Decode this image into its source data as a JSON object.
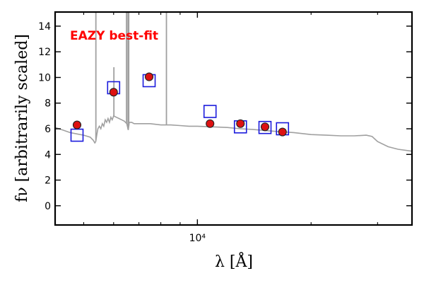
{
  "chart_data": {
    "type": "scatter",
    "annotation": "EAZY best-fit",
    "annotation_color": "#ff0000",
    "xlabel": "λ [Å]",
    "ylabel": "fν [arbitrarily scaled]",
    "x_scale": "log",
    "xlim": [
      4200,
      37000
    ],
    "ylim": [
      -1.5,
      15.1
    ],
    "y_ticks": [
      0,
      2,
      4,
      6,
      8,
      10,
      12,
      14
    ],
    "x_tick_labels": [
      {
        "value": 10000,
        "label": "10⁴"
      }
    ],
    "colors": {
      "template": "#a0a0a0",
      "observed_fill": "#dd1111",
      "observed_edge": "#222222",
      "model_edge": "#1a1adc"
    },
    "series": [
      {
        "kind": "observed",
        "x": [
          4800,
          6000,
          7450,
          10800,
          13000,
          15100,
          16800
        ],
        "y": [
          6.3,
          8.85,
          10.05,
          6.4,
          6.4,
          6.15,
          5.75
        ]
      },
      {
        "kind": "model",
        "x": [
          4800,
          6000,
          7450,
          10800,
          13000,
          15100,
          16800
        ],
        "y": [
          5.5,
          9.2,
          9.75,
          7.35,
          6.15,
          6.1,
          6.0
        ]
      },
      {
        "kind": "template",
        "x": [
          4200,
          4400,
          4600,
          4800,
          5000,
          5200,
          5300,
          5350,
          5380,
          5420,
          5450,
          5500,
          5550,
          5600,
          5650,
          5700,
          5750,
          5800,
          5850,
          5900,
          5950,
          6000,
          6100,
          6200,
          6300,
          6400,
          6500,
          6560,
          6600,
          6700,
          6800,
          7000,
          7500,
          8000,
          8500,
          9000,
          9500,
          10000,
          11000,
          12000,
          13000,
          14000,
          16000,
          18000,
          20000,
          22000,
          24000,
          26000,
          28000,
          29000,
          30000,
          32000,
          34000,
          37000
        ],
        "y": [
          6.1,
          5.9,
          5.7,
          5.6,
          5.5,
          5.35,
          5.1,
          4.9,
          5.0,
          5.6,
          6.0,
          6.2,
          6.0,
          6.4,
          6.2,
          6.7,
          6.5,
          6.8,
          6.5,
          6.9,
          6.7,
          7.0,
          6.9,
          6.8,
          6.7,
          6.6,
          6.4,
          5.9,
          6.5,
          6.5,
          6.4,
          6.4,
          6.4,
          6.3,
          6.3,
          6.25,
          6.2,
          6.2,
          6.15,
          6.1,
          6.0,
          5.95,
          5.8,
          5.7,
          5.55,
          5.5,
          5.45,
          5.45,
          5.5,
          5.4,
          5.0,
          4.6,
          4.4,
          4.25
        ]
      },
      {
        "kind": "emission-lines",
        "x": [
          5385,
          6010,
          6490,
          6550,
          6580,
          8280
        ],
        "y": [
          15.1,
          10.8,
          15.1,
          15.1,
          15.1,
          15.1
        ]
      }
    ]
  }
}
